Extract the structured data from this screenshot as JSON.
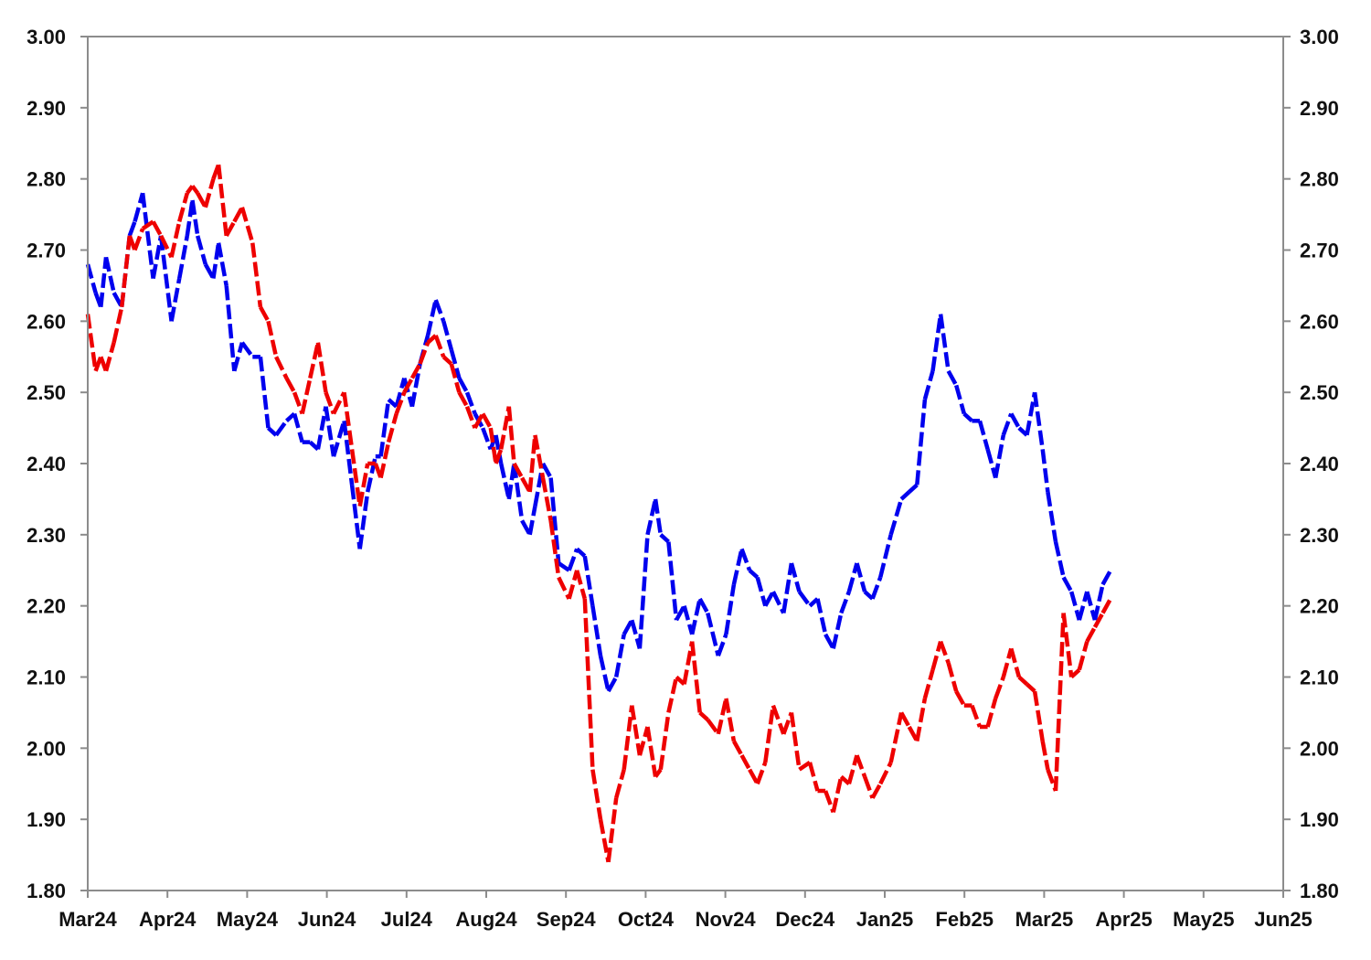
{
  "chart_data": {
    "type": "line",
    "title": "",
    "xlabel": "",
    "ylabel": "",
    "ylim": [
      1.8,
      3.0
    ],
    "y_ticks": [
      "1.80",
      "1.90",
      "2.00",
      "2.10",
      "2.20",
      "2.30",
      "2.40",
      "2.50",
      "2.60",
      "2.70",
      "2.80",
      "2.90",
      "3.00"
    ],
    "y_ticks_right": [
      "1.80",
      "1.90",
      "2.00",
      "2.10",
      "2.20",
      "2.30",
      "2.40",
      "2.50",
      "2.60",
      "2.70",
      "2.80",
      "2.90",
      "3.00"
    ],
    "x_ticks": [
      "Mar24",
      "Apr24",
      "May24",
      "Jun24",
      "Jul24",
      "Aug24",
      "Sep24",
      "Oct24",
      "Nov24",
      "Dec24",
      "Jan25",
      "Feb25",
      "Mar25",
      "Apr25",
      "May25",
      "Jun25"
    ],
    "xlim": [
      "2024-03-01",
      "2025-06-01"
    ],
    "grid": false,
    "legend": "none",
    "series": [
      {
        "color": "#0000ee",
        "points": [
          [
            "2024-03-01",
            2.68
          ],
          [
            "2024-03-04",
            2.64
          ],
          [
            "2024-03-06",
            2.62
          ],
          [
            "2024-03-08",
            2.69
          ],
          [
            "2024-03-11",
            2.64
          ],
          [
            "2024-03-14",
            2.62
          ],
          [
            "2024-03-17",
            2.72
          ],
          [
            "2024-03-19",
            2.74
          ],
          [
            "2024-03-22",
            2.78
          ],
          [
            "2024-03-26",
            2.66
          ],
          [
            "2024-03-29",
            2.72
          ],
          [
            "2024-04-02",
            2.6
          ],
          [
            "2024-04-05",
            2.66
          ],
          [
            "2024-04-08",
            2.72
          ],
          [
            "2024-04-10",
            2.77
          ],
          [
            "2024-04-12",
            2.72
          ],
          [
            "2024-04-15",
            2.68
          ],
          [
            "2024-04-18",
            2.66
          ],
          [
            "2024-04-20",
            2.71
          ],
          [
            "2024-04-23",
            2.65
          ],
          [
            "2024-04-26",
            2.53
          ],
          [
            "2024-04-29",
            2.57
          ],
          [
            "2024-05-03",
            2.55
          ],
          [
            "2024-05-06",
            2.55
          ],
          [
            "2024-05-09",
            2.45
          ],
          [
            "2024-05-12",
            2.44
          ],
          [
            "2024-05-16",
            2.46
          ],
          [
            "2024-05-19",
            2.47
          ],
          [
            "2024-05-22",
            2.43
          ],
          [
            "2024-05-25",
            2.43
          ],
          [
            "2024-05-28",
            2.42
          ],
          [
            "2024-05-31",
            2.48
          ],
          [
            "2024-06-03",
            2.41
          ],
          [
            "2024-06-07",
            2.46
          ],
          [
            "2024-06-10",
            2.37
          ],
          [
            "2024-06-13",
            2.28
          ],
          [
            "2024-06-16",
            2.36
          ],
          [
            "2024-06-19",
            2.41
          ],
          [
            "2024-06-21",
            2.41
          ],
          [
            "2024-06-24",
            2.49
          ],
          [
            "2024-06-27",
            2.48
          ],
          [
            "2024-06-30",
            2.52
          ],
          [
            "2024-07-03",
            2.48
          ],
          [
            "2024-07-06",
            2.54
          ],
          [
            "2024-07-09",
            2.58
          ],
          [
            "2024-07-12",
            2.63
          ],
          [
            "2024-07-15",
            2.6
          ],
          [
            "2024-07-18",
            2.56
          ],
          [
            "2024-07-21",
            2.52
          ],
          [
            "2024-07-24",
            2.5
          ],
          [
            "2024-07-27",
            2.47
          ],
          [
            "2024-07-30",
            2.45
          ],
          [
            "2024-08-02",
            2.42
          ],
          [
            "2024-08-04",
            2.44
          ],
          [
            "2024-08-06",
            2.4
          ],
          [
            "2024-08-09",
            2.35
          ],
          [
            "2024-08-11",
            2.4
          ],
          [
            "2024-08-14",
            2.32
          ],
          [
            "2024-08-17",
            2.3
          ],
          [
            "2024-08-19",
            2.34
          ],
          [
            "2024-08-22",
            2.4
          ],
          [
            "2024-08-25",
            2.38
          ],
          [
            "2024-08-28",
            2.26
          ],
          [
            "2024-09-01",
            2.25
          ],
          [
            "2024-09-04",
            2.28
          ],
          [
            "2024-09-07",
            2.27
          ],
          [
            "2024-09-10",
            2.2
          ],
          [
            "2024-09-13",
            2.13
          ],
          [
            "2024-09-16",
            2.08
          ],
          [
            "2024-09-19",
            2.1
          ],
          [
            "2024-09-22",
            2.16
          ],
          [
            "2024-09-25",
            2.18
          ],
          [
            "2024-09-28",
            2.14
          ],
          [
            "2024-10-01",
            2.3
          ],
          [
            "2024-10-04",
            2.35
          ],
          [
            "2024-10-06",
            2.3
          ],
          [
            "2024-10-09",
            2.29
          ],
          [
            "2024-10-12",
            2.18
          ],
          [
            "2024-10-15",
            2.2
          ],
          [
            "2024-10-18",
            2.16
          ],
          [
            "2024-10-21",
            2.21
          ],
          [
            "2024-10-24",
            2.19
          ],
          [
            "2024-10-28",
            2.13
          ],
          [
            "2024-10-31",
            2.16
          ],
          [
            "2024-11-03",
            2.23
          ],
          [
            "2024-11-06",
            2.28
          ],
          [
            "2024-11-09",
            2.25
          ],
          [
            "2024-11-12",
            2.24
          ],
          [
            "2024-11-15",
            2.2
          ],
          [
            "2024-11-18",
            2.22
          ],
          [
            "2024-11-22",
            2.19
          ],
          [
            "2024-11-25",
            2.26
          ],
          [
            "2024-11-28",
            2.22
          ],
          [
            "2024-12-02",
            2.2
          ],
          [
            "2024-12-05",
            2.21
          ],
          [
            "2024-12-08",
            2.16
          ],
          [
            "2024-12-11",
            2.14
          ],
          [
            "2024-12-14",
            2.19
          ],
          [
            "2024-12-17",
            2.22
          ],
          [
            "2024-12-20",
            2.26
          ],
          [
            "2024-12-23",
            2.22
          ],
          [
            "2024-12-26",
            2.21
          ],
          [
            "2024-12-29",
            2.24
          ],
          [
            "2025-01-02",
            2.3
          ],
          [
            "2025-01-06",
            2.35
          ],
          [
            "2025-01-09",
            2.36
          ],
          [
            "2025-01-12",
            2.37
          ],
          [
            "2025-01-15",
            2.49
          ],
          [
            "2025-01-18",
            2.53
          ],
          [
            "2025-01-21",
            2.61
          ],
          [
            "2025-01-24",
            2.53
          ],
          [
            "2025-01-27",
            2.51
          ],
          [
            "2025-01-30",
            2.47
          ],
          [
            "2025-02-02",
            2.46
          ],
          [
            "2025-02-05",
            2.46
          ],
          [
            "2025-02-08",
            2.42
          ],
          [
            "2025-02-11",
            2.38
          ],
          [
            "2025-02-14",
            2.44
          ],
          [
            "2025-02-17",
            2.47
          ],
          [
            "2025-02-20",
            2.45
          ],
          [
            "2025-02-23",
            2.44
          ],
          [
            "2025-02-26",
            2.5
          ],
          [
            "2025-03-01",
            2.42
          ],
          [
            "2025-03-03",
            2.36
          ],
          [
            "2025-03-06",
            2.29
          ],
          [
            "2025-03-09",
            2.24
          ],
          [
            "2025-03-12",
            2.22
          ],
          [
            "2025-03-15",
            2.18
          ],
          [
            "2025-03-18",
            2.22
          ],
          [
            "2025-03-21",
            2.18
          ],
          [
            "2025-03-24",
            2.23
          ],
          [
            "2025-03-27",
            2.25
          ]
        ]
      },
      {
        "color": "#ee0000",
        "points": [
          [
            "2024-03-01",
            2.61
          ],
          [
            "2024-03-04",
            2.53
          ],
          [
            "2024-03-06",
            2.55
          ],
          [
            "2024-03-08",
            2.53
          ],
          [
            "2024-03-11",
            2.57
          ],
          [
            "2024-03-14",
            2.62
          ],
          [
            "2024-03-17",
            2.72
          ],
          [
            "2024-03-19",
            2.7
          ],
          [
            "2024-03-22",
            2.73
          ],
          [
            "2024-03-26",
            2.74
          ],
          [
            "2024-03-29",
            2.72
          ],
          [
            "2024-04-02",
            2.69
          ],
          [
            "2024-04-05",
            2.74
          ],
          [
            "2024-04-08",
            2.78
          ],
          [
            "2024-04-10",
            2.79
          ],
          [
            "2024-04-12",
            2.78
          ],
          [
            "2024-04-15",
            2.76
          ],
          [
            "2024-04-18",
            2.8
          ],
          [
            "2024-04-20",
            2.82
          ],
          [
            "2024-04-23",
            2.72
          ],
          [
            "2024-04-26",
            2.74
          ],
          [
            "2024-04-29",
            2.76
          ],
          [
            "2024-05-03",
            2.71
          ],
          [
            "2024-05-06",
            2.62
          ],
          [
            "2024-05-09",
            2.6
          ],
          [
            "2024-05-12",
            2.55
          ],
          [
            "2024-05-16",
            2.52
          ],
          [
            "2024-05-19",
            2.5
          ],
          [
            "2024-05-22",
            2.47
          ],
          [
            "2024-05-25",
            2.52
          ],
          [
            "2024-05-28",
            2.57
          ],
          [
            "2024-05-31",
            2.5
          ],
          [
            "2024-06-03",
            2.47
          ],
          [
            "2024-06-07",
            2.5
          ],
          [
            "2024-06-10",
            2.42
          ],
          [
            "2024-06-13",
            2.34
          ],
          [
            "2024-06-16",
            2.4
          ],
          [
            "2024-06-19",
            2.4
          ],
          [
            "2024-06-21",
            2.38
          ],
          [
            "2024-06-24",
            2.43
          ],
          [
            "2024-06-27",
            2.47
          ],
          [
            "2024-06-30",
            2.5
          ],
          [
            "2024-07-03",
            2.52
          ],
          [
            "2024-07-06",
            2.54
          ],
          [
            "2024-07-09",
            2.57
          ],
          [
            "2024-07-12",
            2.58
          ],
          [
            "2024-07-15",
            2.55
          ],
          [
            "2024-07-18",
            2.54
          ],
          [
            "2024-07-21",
            2.5
          ],
          [
            "2024-07-24",
            2.48
          ],
          [
            "2024-07-27",
            2.45
          ],
          [
            "2024-07-30",
            2.47
          ],
          [
            "2024-08-02",
            2.45
          ],
          [
            "2024-08-04",
            2.4
          ],
          [
            "2024-08-06",
            2.42
          ],
          [
            "2024-08-09",
            2.48
          ],
          [
            "2024-08-11",
            2.4
          ],
          [
            "2024-08-14",
            2.38
          ],
          [
            "2024-08-17",
            2.36
          ],
          [
            "2024-08-19",
            2.44
          ],
          [
            "2024-08-22",
            2.38
          ],
          [
            "2024-08-25",
            2.32
          ],
          [
            "2024-08-28",
            2.24
          ],
          [
            "2024-09-01",
            2.21
          ],
          [
            "2024-09-04",
            2.25
          ],
          [
            "2024-09-07",
            2.21
          ],
          [
            "2024-09-10",
            1.97
          ],
          [
            "2024-09-13",
            1.9
          ],
          [
            "2024-09-16",
            1.84
          ],
          [
            "2024-09-19",
            1.93
          ],
          [
            "2024-09-22",
            1.97
          ],
          [
            "2024-09-25",
            2.06
          ],
          [
            "2024-09-28",
            1.99
          ],
          [
            "2024-10-01",
            2.03
          ],
          [
            "2024-10-04",
            1.96
          ],
          [
            "2024-10-06",
            1.97
          ],
          [
            "2024-10-09",
            2.05
          ],
          [
            "2024-10-12",
            2.1
          ],
          [
            "2024-10-15",
            2.09
          ],
          [
            "2024-10-18",
            2.15
          ],
          [
            "2024-10-21",
            2.05
          ],
          [
            "2024-10-24",
            2.04
          ],
          [
            "2024-10-28",
            2.02
          ],
          [
            "2024-10-31",
            2.07
          ],
          [
            "2024-11-03",
            2.01
          ],
          [
            "2024-11-06",
            1.99
          ],
          [
            "2024-11-09",
            1.97
          ],
          [
            "2024-11-12",
            1.95
          ],
          [
            "2024-11-15",
            1.98
          ],
          [
            "2024-11-18",
            2.06
          ],
          [
            "2024-11-22",
            2.02
          ],
          [
            "2024-11-25",
            2.05
          ],
          [
            "2024-11-28",
            1.97
          ],
          [
            "2024-12-02",
            1.98
          ],
          [
            "2024-12-05",
            1.94
          ],
          [
            "2024-12-08",
            1.94
          ],
          [
            "2024-12-11",
            1.91
          ],
          [
            "2024-12-14",
            1.96
          ],
          [
            "2024-12-17",
            1.95
          ],
          [
            "2024-12-20",
            1.99
          ],
          [
            "2024-12-23",
            1.96
          ],
          [
            "2024-12-26",
            1.93
          ],
          [
            "2024-12-29",
            1.95
          ],
          [
            "2025-01-02",
            1.98
          ],
          [
            "2025-01-06",
            2.05
          ],
          [
            "2025-01-09",
            2.03
          ],
          [
            "2025-01-12",
            2.01
          ],
          [
            "2025-01-15",
            2.07
          ],
          [
            "2025-01-18",
            2.11
          ],
          [
            "2025-01-21",
            2.15
          ],
          [
            "2025-01-24",
            2.12
          ],
          [
            "2025-01-27",
            2.08
          ],
          [
            "2025-01-30",
            2.06
          ],
          [
            "2025-02-02",
            2.06
          ],
          [
            "2025-02-05",
            2.03
          ],
          [
            "2025-02-08",
            2.03
          ],
          [
            "2025-02-11",
            2.07
          ],
          [
            "2025-02-14",
            2.1
          ],
          [
            "2025-02-17",
            2.14
          ],
          [
            "2025-02-20",
            2.1
          ],
          [
            "2025-02-23",
            2.09
          ],
          [
            "2025-02-26",
            2.08
          ],
          [
            "2025-03-01",
            2.01
          ],
          [
            "2025-03-03",
            1.97
          ],
          [
            "2025-03-06",
            1.94
          ],
          [
            "2025-03-09",
            2.19
          ],
          [
            "2025-03-12",
            2.1
          ],
          [
            "2025-03-15",
            2.11
          ],
          [
            "2025-03-18",
            2.15
          ],
          [
            "2025-03-21",
            2.17
          ],
          [
            "2025-03-24",
            2.19
          ],
          [
            "2025-03-27",
            2.21
          ]
        ]
      }
    ]
  }
}
